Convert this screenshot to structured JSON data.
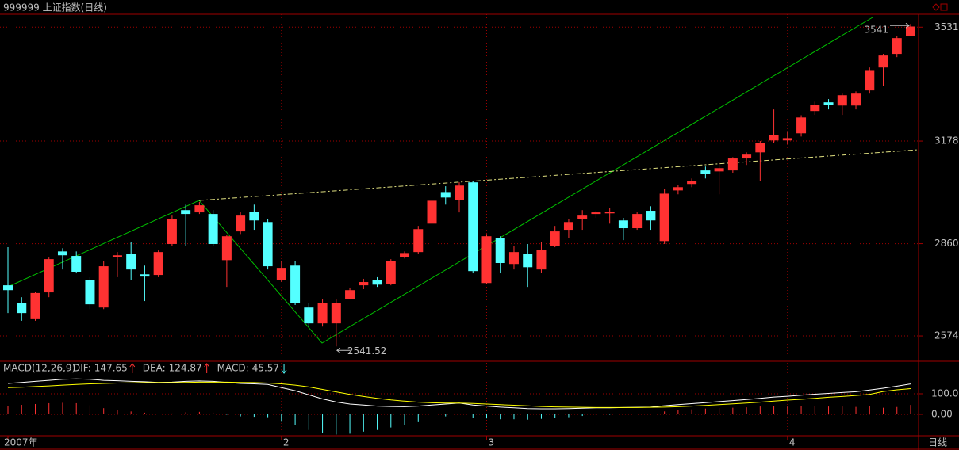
{
  "chart_data": [
    {
      "type": "candlestick",
      "title": "999999 上证指数(日线)",
      "period_label": "日线",
      "categories": [
        "2007年",
        null,
        null,
        null,
        null,
        null,
        null,
        null,
        null,
        null,
        null,
        null,
        null,
        null,
        null,
        null,
        null,
        null,
        null,
        null,
        "2",
        null,
        null,
        null,
        null,
        null,
        null,
        null,
        null,
        null,
        null,
        null,
        null,
        null,
        null,
        "3",
        null,
        null,
        null,
        null,
        null,
        null,
        null,
        null,
        null,
        null,
        null,
        null,
        null,
        null,
        null,
        null,
        null,
        null,
        null,
        null,
        null,
        "4",
        null,
        null,
        null,
        null,
        null,
        null,
        null,
        null,
        null
      ],
      "open": [
        2731,
        2675,
        2626,
        2709,
        2836,
        2822,
        2748,
        2662,
        2819,
        2829,
        2765,
        2763,
        2859,
        2964,
        2957,
        2952,
        2809,
        2898,
        2959,
        2927,
        2746,
        2792,
        2662,
        2613,
        2613,
        2689,
        2731,
        2746,
        2736,
        2819,
        2834,
        2922,
        3020,
        2996,
        3050,
        2738,
        2878,
        2797,
        2829,
        2780,
        2854,
        2903,
        2937,
        2952,
        2954,
        2932,
        2908,
        2962,
        2868,
        3025,
        3045,
        3087,
        3084,
        3087,
        3124,
        3143,
        3180,
        3180,
        3202,
        3271,
        3298,
        3288,
        3288,
        3335,
        3406,
        3448,
        3504
      ],
      "high": [
        2849,
        2694,
        2711,
        2817,
        2846,
        2836,
        2756,
        2805,
        2834,
        2866,
        2792,
        2839,
        2947,
        2981,
        2989,
        2964,
        2888,
        2957,
        2981,
        2937,
        2805,
        2805,
        2677,
        2687,
        2687,
        2724,
        2751,
        2756,
        2812,
        2836,
        2915,
        3001,
        3038,
        3050,
        3055,
        2890,
        2883,
        2854,
        2859,
        2866,
        2915,
        2937,
        2964,
        2962,
        2971,
        2940,
        2957,
        2976,
        3030,
        3043,
        3062,
        3099,
        3111,
        3128,
        3143,
        3178,
        3276,
        3209,
        3258,
        3300,
        3308,
        3325,
        3332,
        3406,
        3448,
        3504,
        3541
      ],
      "low": [
        2645,
        2621,
        2621,
        2694,
        2780,
        2768,
        2657,
        2657,
        2756,
        2748,
        2682,
        2756,
        2854,
        2854,
        2952,
        2854,
        2726,
        2890,
        2903,
        2780,
        2741,
        2670,
        2603,
        2603,
        2541.52,
        2687,
        2719,
        2726,
        2731,
        2814,
        2829,
        2915,
        2981,
        2957,
        2768,
        2736,
        2768,
        2780,
        2726,
        2770,
        2849,
        2878,
        2903,
        2940,
        2922,
        2871,
        2903,
        2903,
        2859,
        3013,
        3035,
        3062,
        3013,
        3080,
        3104,
        3055,
        3173,
        3168,
        3192,
        3259,
        3276,
        3259,
        3276,
        3325,
        3349,
        3438,
        3504
      ],
      "close": [
        2716,
        2645,
        2707,
        2812,
        2824,
        2773,
        2672,
        2790,
        2824,
        2780,
        2758,
        2834,
        2937,
        2952,
        2979,
        2859,
        2883,
        2947,
        2932,
        2790,
        2785,
        2677,
        2613,
        2677,
        2677,
        2716,
        2741,
        2733,
        2807,
        2831,
        2905,
        2993,
        3003,
        3040,
        2775,
        2883,
        2800,
        2834,
        2787,
        2841,
        2898,
        2927,
        2947,
        2957,
        2959,
        2908,
        2952,
        2932,
        3015,
        3035,
        3055,
        3075,
        3094,
        3124,
        3136,
        3173,
        3197,
        3187,
        3251,
        3290,
        3290,
        3320,
        3325,
        3398,
        3443,
        3497,
        3533
      ],
      "ylim": [
        2498,
        3571
      ],
      "yticks": [
        2574,
        2860,
        3178,
        3531
      ],
      "up_color": "#ff3232",
      "down_color": "#54ffff",
      "grid": true
    },
    {
      "type": "macd",
      "title": "MACD(12,26,9)",
      "series": [
        {
          "name": "DIF:",
          "color": "#ffffff",
          "values": [
            150,
            155,
            160,
            165,
            170,
            172,
            170,
            165,
            163,
            160,
            158,
            155,
            156,
            160,
            162,
            160,
            155,
            150,
            148,
            145,
            130,
            115,
            95,
            75,
            60,
            50,
            45,
            40,
            38,
            37,
            40,
            45,
            50,
            55,
            45,
            40,
            35,
            32,
            28,
            27,
            27,
            28,
            30,
            32,
            32,
            33,
            34,
            35,
            42,
            47,
            52,
            57,
            62,
            67,
            72,
            78,
            84,
            88,
            93,
            98,
            102,
            106,
            110,
            118,
            127,
            137,
            147.65
          ]
        },
        {
          "name": "DEA:",
          "color": "#ffff00",
          "values": [
            130,
            132,
            135,
            138,
            142,
            145,
            148,
            150,
            152,
            153,
            154,
            154,
            154,
            155,
            156,
            156,
            156,
            155,
            154,
            152,
            148,
            142,
            133,
            121,
            109,
            97,
            87,
            78,
            70,
            64,
            59,
            56,
            55,
            55,
            53,
            50,
            47,
            44,
            41,
            38,
            36,
            35,
            34,
            33,
            33,
            33,
            33,
            34,
            35,
            37,
            40,
            43,
            47,
            51,
            55,
            59,
            64,
            69,
            73,
            78,
            83,
            87,
            92,
            97,
            111,
            119.2,
            124.87
          ]
        },
        {
          "name": "MACD:",
          "color": "#ff54ff",
          "up_color": "#ff3232",
          "down_color": "#54ffff",
          "values": [
            40,
            46,
            50,
            54,
            56,
            54,
            44,
            30,
            22,
            14,
            8,
            2,
            4,
            10,
            12,
            8,
            -2,
            -10,
            -12,
            -14,
            -36,
            -54,
            -76,
            -92,
            -98,
            -94,
            -84,
            -76,
            -64,
            -54,
            -38,
            -22,
            -10,
            0,
            -16,
            -20,
            -24,
            -24,
            -26,
            -22,
            -18,
            -14,
            -8,
            -2,
            -2,
            0,
            2,
            2,
            14,
            20,
            24,
            28,
            30,
            32,
            34,
            38,
            40,
            38,
            40,
            40,
            38,
            38,
            36,
            42,
            32,
            35.6,
            45.57
          ]
        }
      ],
      "ylim": [
        -104,
        250
      ],
      "yticks": [
        {
          "value": 100,
          "label": "100.0"
        },
        {
          "value": 0,
          "label": "0.00"
        }
      ]
    }
  ]
}
